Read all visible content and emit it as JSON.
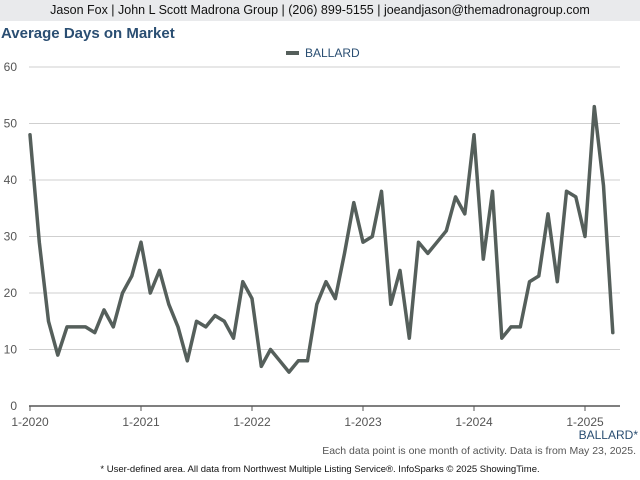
{
  "header": {
    "contact": "Jason Fox | John L Scott Madrona Group | (206) 899-5155 | joeandjason@themadronagroup.com"
  },
  "footer": {
    "note": "Each data point is one month of activity. Data is from May 23, 2025.",
    "disclaimer": "* User-defined area. All data from Northwest Multiple Listing Service®. InfoSparks © 2025 ShowingTime."
  },
  "colors": {
    "series": "#555f5b",
    "title": "#2a4e72",
    "grid": "#cfcfcf",
    "axis_label": "#2a4e72"
  },
  "chart_data": {
    "type": "line",
    "title": "Average Days on Market",
    "x_tick_labels": [
      "1-2020",
      "1-2021",
      "1-2022",
      "1-2023",
      "1-2024",
      "1-2025"
    ],
    "y_ticks": [
      0,
      10,
      20,
      30,
      40,
      50,
      60
    ],
    "ylim": [
      0,
      60
    ],
    "grid": "horizontal",
    "legend_position": "top-center",
    "x_axis_corner_label": "BALLARD*",
    "x_start": "2020-01",
    "series": [
      {
        "name": "BALLARD",
        "color": "#555f5b",
        "values": [
          48,
          29,
          15,
          9,
          14,
          14,
          14,
          13,
          17,
          14,
          20,
          23,
          29,
          20,
          24,
          18,
          14,
          8,
          15,
          14,
          16,
          15,
          12,
          22,
          19,
          7,
          10,
          8,
          6,
          8,
          8,
          18,
          22,
          19,
          27,
          36,
          29,
          30,
          38,
          18,
          24,
          12,
          29,
          27,
          29,
          31,
          37,
          34,
          48,
          26,
          38,
          12,
          14,
          14,
          22,
          23,
          34,
          22,
          38,
          37,
          30,
          53,
          39,
          13
        ]
      }
    ]
  }
}
